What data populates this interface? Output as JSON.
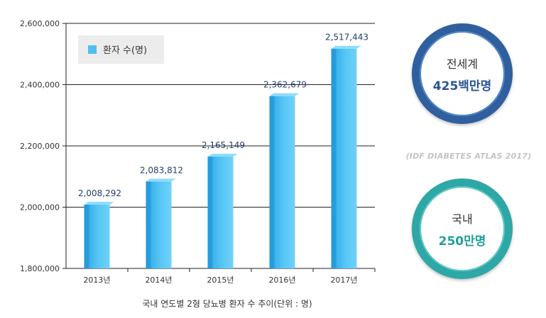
{
  "chart_data": {
    "type": "bar",
    "categories": [
      "2013년",
      "2014년",
      "2015년",
      "2016년",
      "2017년"
    ],
    "series": [
      {
        "name": "환자 수(명)",
        "values": [
          2008292,
          2083812,
          2165149,
          2362679,
          2517443
        ]
      }
    ],
    "data_labels": [
      "2,008,292",
      "2,083,812",
      "2,165,149",
      "2,362,679",
      "2,517,443"
    ],
    "y_ticks": [
      "2,600,000",
      "2,400,000",
      "2,200,000",
      "2,000,000",
      "1,800,000"
    ],
    "ylim": [
      1800000,
      2600000
    ],
    "grid": true,
    "legend_position": "top-left",
    "bar_color": "#4fbff2"
  },
  "caption": "국내 연도별 2형 당뇨병 환자 수 추이(단위 : 명)",
  "stats": {
    "world": {
      "label": "전세계",
      "value": "425백만명",
      "color": "#2a5796"
    },
    "source": "(IDF DIABETES ATLAS 2017)",
    "domestic": {
      "label": "국내",
      "value": "250만명",
      "color": "#239f9a"
    }
  }
}
